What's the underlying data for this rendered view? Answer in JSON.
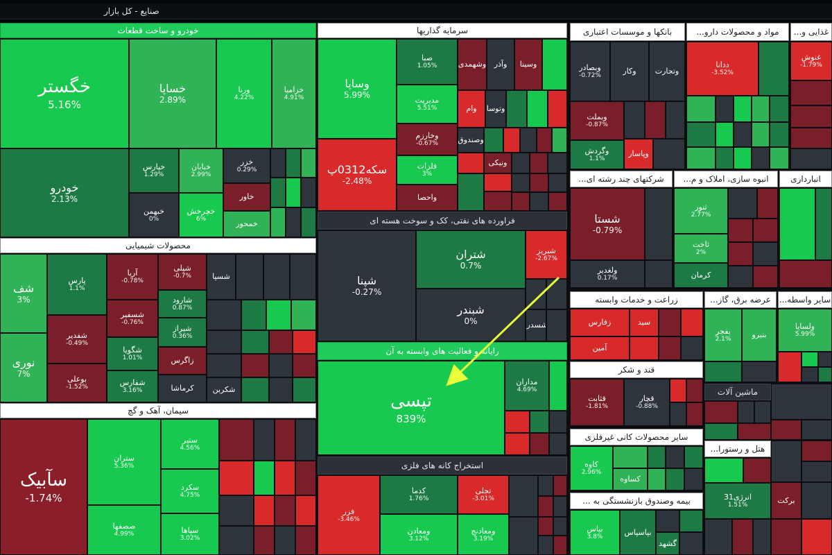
{
  "header": {
    "title": "صنایع - کل بازار"
  },
  "colors": {
    "bright_green": "#17c94f",
    "green": "#2fb356",
    "dark_green": "#1e7a45",
    "neutral": "#2d343b",
    "dark_red": "#7a1f2a",
    "red": "#d82a2a",
    "arrow": "#e9ff3a"
  },
  "sections": {
    "auto": "خودرو و ساخت قطعات",
    "investment": "سرمایه گذاریها",
    "banks": "بانکها و موسسات اعتباری",
    "pharma": "مواد و محصولات دارو...",
    "food": "غذایی و...",
    "chemical": "محصولات شیمیایی",
    "oil": "فراورده های نفتی، کک و سوخت هسته ای",
    "multi": "شرکتهای چند رشته ای...",
    "construction": "انبوه سازی، املاک و م...",
    "warehouse": "انبارداری",
    "farming": "زراعت و خدمات وابسته",
    "electric": "عرضه برق، گاز...",
    "intermediaries": "سایر واسطه...",
    "computer": "رایانه و فعالیت های وابسته به آن",
    "sugar": "قند و شکر",
    "machinery": "ماشین آلات",
    "cement": "سیمان، آهک و گچ",
    "nonmetal": "سایر محصولات کانی غیرفلزی",
    "hotel": "هتل و رستورا...",
    "mining": "استخراج کانه های فلزی",
    "insurance": "بیمه وصندوق بازنشستگی به ..."
  },
  "tiles": {
    "khegostar": {
      "name": "خگستر",
      "val": "5.16%"
    },
    "khasapa": {
      "name": "خساپا",
      "val": "2.89%"
    },
    "vorna": {
      "name": "ورنا",
      "val": "4.22%"
    },
    "kharamsha": {
      "name": "خزامیا",
      "val": "4.91%"
    },
    "khodro": {
      "name": "خودرو",
      "val": "2.13%"
    },
    "khpars": {
      "name": "خپارس",
      "val": "1.29%"
    },
    "khiban": {
      "name": "خبابان",
      "val": "2.99%"
    },
    "khezar": {
      "name": "خزر",
      "val": "0.29%"
    },
    "khavor": {
      "name": "خاور",
      "val": ""
    },
    "khbahman": {
      "name": "خبهمن",
      "val": "0%"
    },
    "khojkhesh": {
      "name": "خچرخش",
      "val": "6%"
    },
    "khamhor": {
      "name": "خمحور",
      "val": ""
    },
    "vsapa": {
      "name": "وساپا",
      "val": "5.99%"
    },
    "seke": {
      "name": "سکه0312پ",
      "val": "-2.48%"
    },
    "saba": {
      "name": "صبا",
      "val": "1.05%"
    },
    "modiriat": {
      "name": "مدیریت",
      "val": "5.51%"
    },
    "vkharazm": {
      "name": "وخارزم",
      "val": "-0.67%"
    },
    "felzat": {
      "name": "فلزات",
      "val": "3%"
    },
    "vahesa": {
      "name": "واحصا",
      "val": ""
    },
    "vsagham": {
      "name": "وشهمدی",
      "val": ""
    },
    "vbaghran": {
      "name": "وآذر",
      "val": ""
    },
    "vsim": {
      "name": "وسینا",
      "val": ""
    },
    "vram": {
      "name": "وام",
      "val": ""
    },
    "vtoosa": {
      "name": "وتوسا",
      "val": ""
    },
    "vtejarat": {
      "name": "وصندوق",
      "val": ""
    },
    "vsand": {
      "name": "ونیکی",
      "val": ""
    },
    "pars": {
      "name": "پارس",
      "val": "1.1%"
    },
    "arya": {
      "name": "آریا",
      "val": "-0.78%"
    },
    "shepli": {
      "name": "شپلی",
      "val": "-0.7%"
    },
    "shaf": {
      "name": "شف",
      "val": "3%"
    },
    "shasfir": {
      "name": "شسپا",
      "val": ""
    },
    "shadir": {
      "name": "شفدیر",
      "val": "-0.49%"
    },
    "shsafir": {
      "name": "شسفیر",
      "val": "-0.76%"
    },
    "sharod": {
      "name": "شارود",
      "val": "0.87%"
    },
    "noori": {
      "name": "نوری",
      "val": "7%"
    },
    "shgoya": {
      "name": "شگویا",
      "val": "1.01%"
    },
    "shiraz": {
      "name": "شیراز",
      "val": "0.36%"
    },
    "boali": {
      "name": "بوعلی",
      "val": "-1.52%"
    },
    "shafars": {
      "name": "شفارس",
      "val": "3.16%"
    },
    "zagros": {
      "name": "زاگرس",
      "val": ""
    },
    "karmasha": {
      "name": "کرماشا",
      "val": ""
    },
    "shekarbon": {
      "name": "شکربن",
      "val": ""
    },
    "shepna": {
      "name": "شپنا",
      "val": "-0.27%"
    },
    "shetran": {
      "name": "شتران",
      "val": "0.7%"
    },
    "shabriz": {
      "name": "شبریز",
      "val": "-2.67%"
    },
    "shebandar": {
      "name": "شبندر",
      "val": "0%"
    },
    "shesdera": {
      "name": "شسدرا",
      "val": ""
    },
    "tapsi": {
      "name": "تپسی",
      "val": "839%"
    },
    "madaran": {
      "name": "مداران",
      "val": "4.69%"
    },
    "sapikav": {
      "name": "سآبیک",
      "val": "-1.74%"
    },
    "setran": {
      "name": "ستران",
      "val": "5.36%"
    },
    "sabir": {
      "name": "ستیر",
      "val": "4.56%"
    },
    "sekord": {
      "name": "سکرد",
      "val": "4.75%"
    },
    "sfahan": {
      "name": "صصفها",
      "val": "4.99%"
    },
    "sepaha": {
      "name": "سپاها",
      "val": "3.02%"
    },
    "fazar": {
      "name": "فزر",
      "val": "-3.46%"
    },
    "kadma": {
      "name": "کدما",
      "val": "1.76%"
    },
    "tajli": {
      "name": "تجلی",
      "val": "-3.01%"
    },
    "vmadan": {
      "name": "ومعادن",
      "val": "3.12%"
    },
    "vmadnij": {
      "name": "ومعادنج",
      "val": "3.19%"
    },
    "vsadar": {
      "name": "وبصادر",
      "val": "-0.72%"
    },
    "vmelat": {
      "name": "وبملت",
      "val": "-0.87%"
    },
    "vkar": {
      "name": "وکار",
      "val": ""
    },
    "vtejarat2": {
      "name": "وتجارت",
      "val": ""
    },
    "vgardesh": {
      "name": "وگردش",
      "val": "1.1%"
    },
    "vpasar": {
      "name": "وپاسار",
      "val": ""
    },
    "dana": {
      "name": "ددانا",
      "val": "-3.52%"
    },
    "nooshe": {
      "name": "غنوش",
      "val": "-1.79%"
    },
    "shasta": {
      "name": "شستا",
      "val": "-0.79%"
    },
    "vlaghdir": {
      "name": "ولغدیر",
      "val": "0.17%"
    },
    "thenoor": {
      "name": "ثنور",
      "val": "2.77%"
    },
    "thakhat": {
      "name": "ثاخت",
      "val": "2%"
    },
    "kerman": {
      "name": "کرمان",
      "val": ""
    },
    "zaham": {
      "name": "زفارس",
      "val": ""
    },
    "zshid": {
      "name": "سید",
      "val": ""
    },
    "amin": {
      "name": "آمین",
      "val": ""
    },
    "bfajr": {
      "name": "بفجر",
      "val": "2.1%"
    },
    "bnirou": {
      "name": "بنیرو",
      "val": ""
    },
    "vlsapa": {
      "name": "ولساپا",
      "val": "5.99%"
    },
    "ghanat": {
      "name": "قثابت",
      "val": "-1.81%"
    },
    "ghajar": {
      "name": "قچار",
      "val": "-0.88%"
    },
    "kaveer": {
      "name": "کاوه",
      "val": "2.96%"
    },
    "kesra": {
      "name": "کساوه",
      "val": ""
    },
    "energy": {
      "name": "انرژی31",
      "val": "1.51%"
    },
    "brast": {
      "name": "برکت",
      "val": ""
    },
    "vbime": {
      "name": "بپاس",
      "val": "3.8%"
    },
    "vbimeh": {
      "name": "بپاسپاس",
      "val": ""
    },
    "gshahd": {
      "name": "گشهد",
      "val": ""
    }
  }
}
